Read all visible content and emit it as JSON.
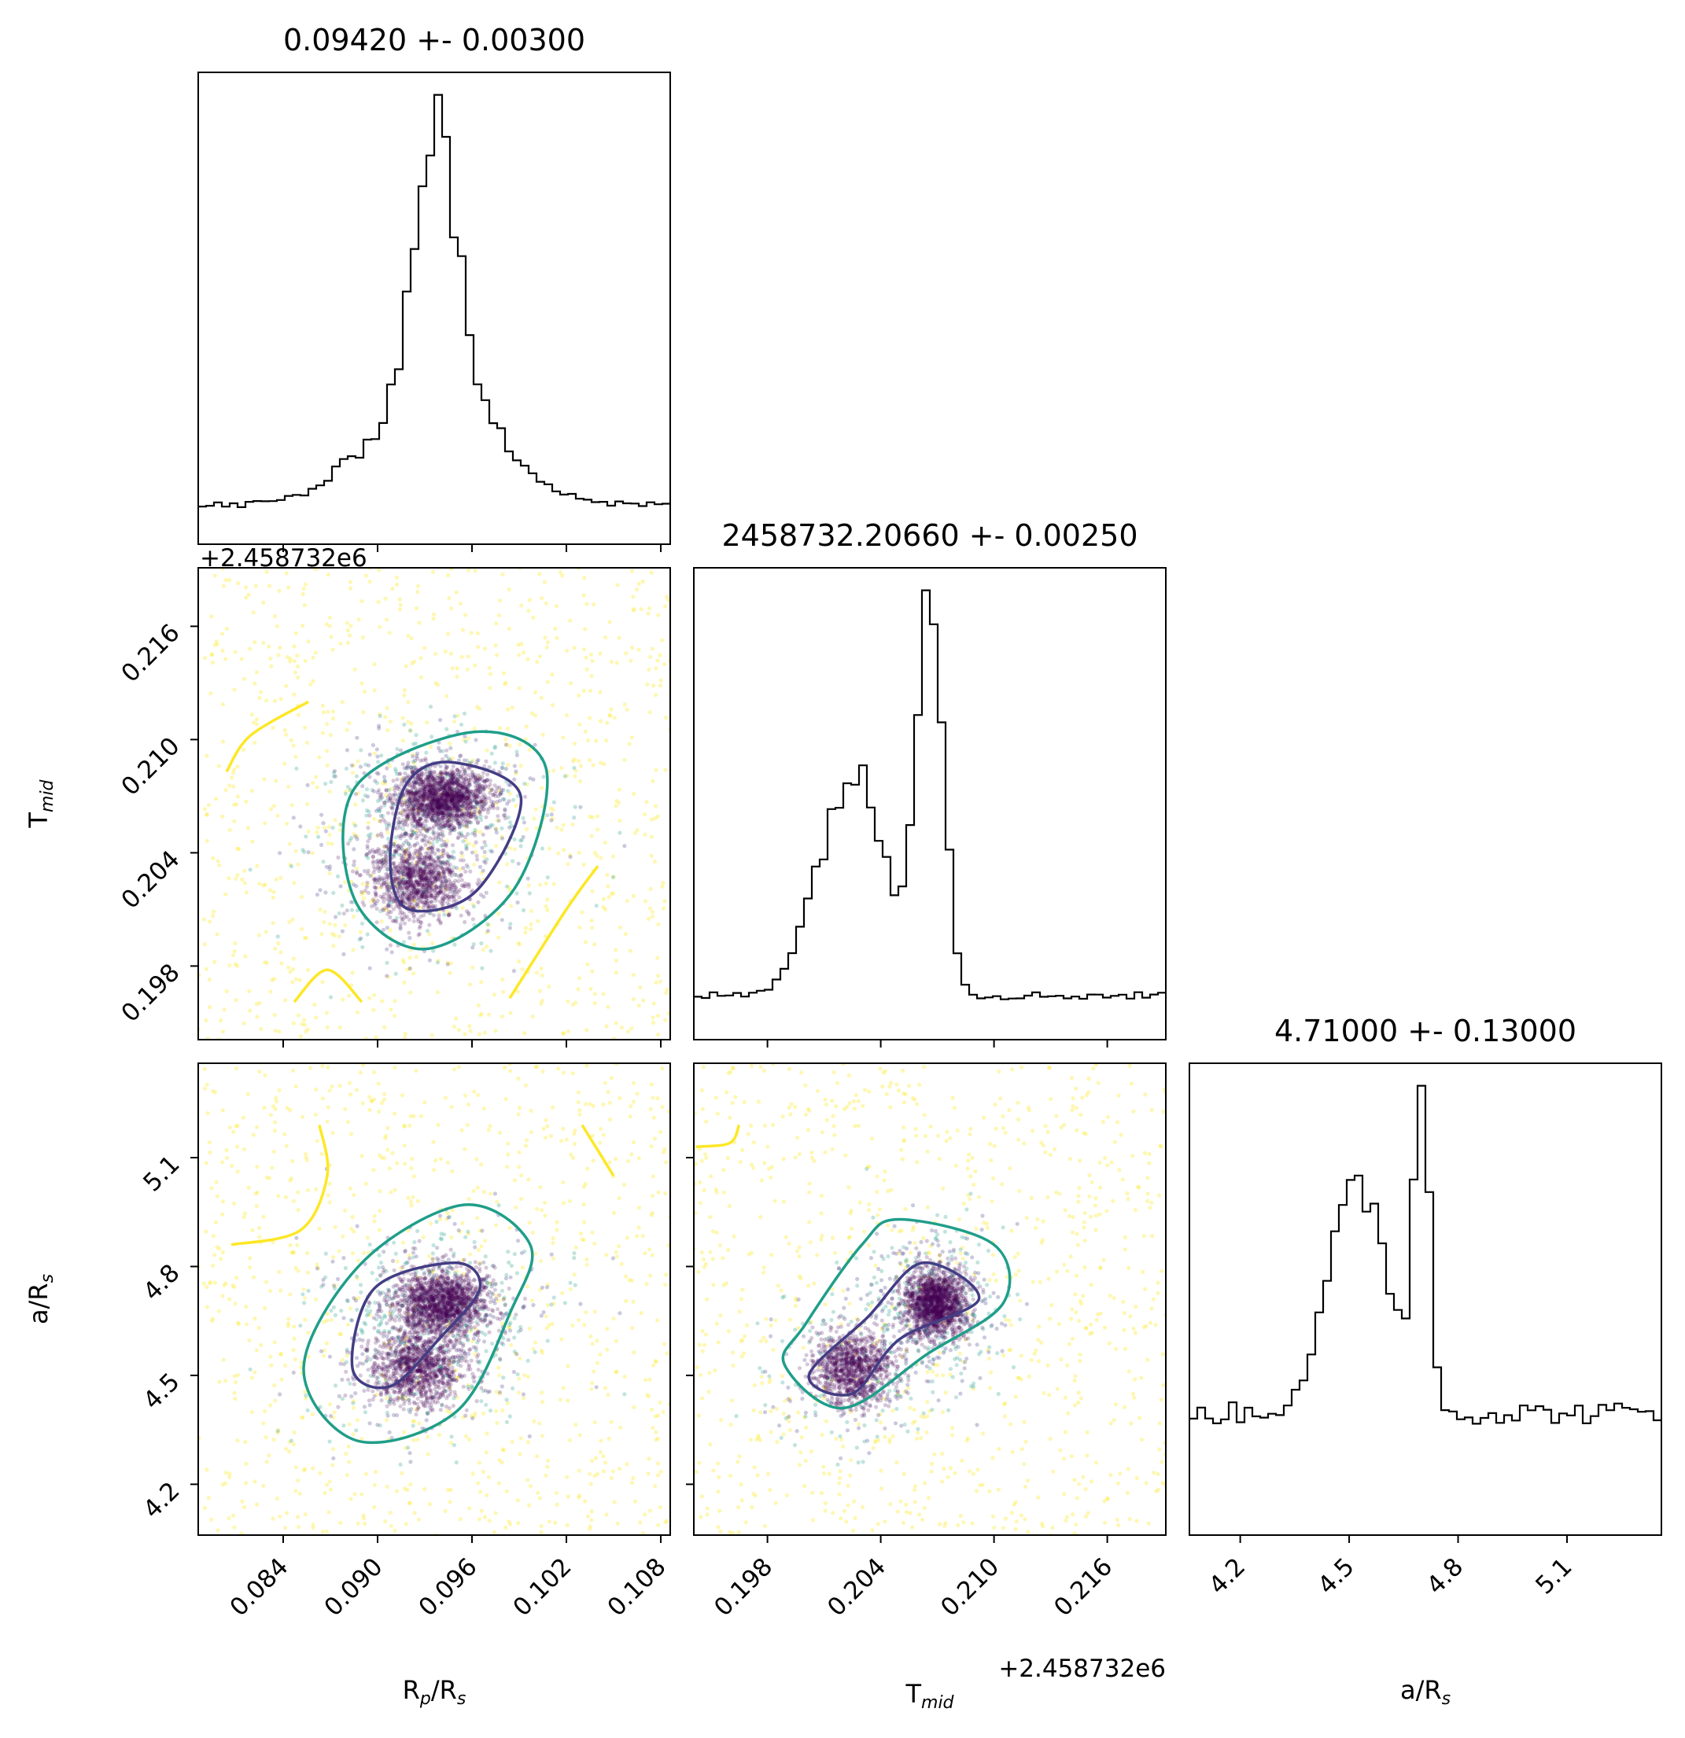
{
  "figure": {
    "colors": {
      "inner_contour": "#433d84",
      "middle_contour": "#1f9e89",
      "outer_contour": "#fde725",
      "dense_points": "#440154",
      "histogram": "#000000"
    }
  },
  "chart_data": {
    "type": "corner",
    "parameters": [
      {
        "key": "rp_rs",
        "label_main": "R",
        "label_sub1": "p",
        "label_mid": "/R",
        "label_sub2": "s",
        "title": "0.09420 +- 0.00300",
        "range": [
          0.0786,
          0.1086
        ],
        "ticks": [
          0.084,
          0.09,
          0.096,
          0.102,
          0.108
        ],
        "tick_labels": [
          "0.084",
          "0.090",
          "0.096",
          "0.102",
          "0.108"
        ]
      },
      {
        "key": "t_mid",
        "label_main": "T",
        "label_sub1": "mid",
        "label_mid": "",
        "label_sub2": "",
        "title": "2458732.20660 +- 0.00250",
        "range": [
          0.1941,
          0.2191
        ],
        "ticks": [
          0.198,
          0.204,
          0.21,
          0.216
        ],
        "tick_labels": [
          "0.198",
          "0.204",
          "0.210",
          "0.216"
        ],
        "offset_text": "+2.458732e6"
      },
      {
        "key": "a_rs",
        "label_main": "a/R",
        "label_sub1": "s",
        "label_mid": "",
        "label_sub2": "",
        "title": "4.71000 +- 0.13000",
        "range": [
          4.06,
          5.36
        ],
        "ticks": [
          4.2,
          4.5,
          4.8,
          5.1
        ],
        "tick_labels": [
          "4.2",
          "4.5",
          "4.8",
          "5.1"
        ]
      }
    ],
    "histograms": [
      {
        "param": "rp_rs",
        "bins": 60,
        "peak_components": [
          {
            "weight": 0.7,
            "mean": 0.0937,
            "sd": 0.0013
          },
          {
            "weight": 0.3,
            "mean": 0.0937,
            "sd": 0.004
          }
        ],
        "background": 0.1
      },
      {
        "param": "t_mid",
        "bins": 60,
        "peak_components": [
          {
            "weight": 0.65,
            "mean": 0.2066,
            "sd": 0.0007
          },
          {
            "weight": 0.35,
            "mean": 0.2025,
            "sd": 0.0018
          }
        ],
        "background": 0.07
      },
      {
        "param": "a_rs",
        "bins": 60,
        "peak_components": [
          {
            "weight": 0.6,
            "mean": 4.7,
            "sd": 0.02
          },
          {
            "weight": 0.4,
            "mean": 4.53,
            "sd": 0.085
          }
        ],
        "background": 0.22
      }
    ],
    "samples": {
      "clusters": [
        {
          "weight": 0.6,
          "mean": [
            0.094,
            0.2069,
            4.7
          ],
          "sd": [
            0.0015,
            0.0008,
            0.045
          ]
        },
        {
          "weight": 0.4,
          "mean": [
            0.0925,
            0.2025,
            4.52
          ],
          "sd": [
            0.0015,
            0.001,
            0.05
          ]
        }
      ],
      "dense_count": 2600,
      "spread_count": 650,
      "uniform_count": 900
    },
    "contours": {
      "panels": [
        {
          "x": "rp_rs",
          "y": "t_mid",
          "inner": [
            [
              0.0947,
              0.2088
            ],
            [
              0.0991,
              0.207
            ],
            [
              0.0963,
              0.202
            ],
            [
              0.092,
              0.201
            ],
            [
              0.0908,
              0.2035
            ],
            [
              0.0918,
              0.2076
            ]
          ],
          "middle": [
            [
              0.0961,
              0.2104
            ],
            [
              0.1007,
              0.2085
            ],
            [
              0.0987,
              0.2021
            ],
            [
              0.093,
              0.1989
            ],
            [
              0.0885,
              0.2016
            ],
            [
              0.0886,
              0.2075
            ]
          ],
          "outer": [
            [
              [
                0.0804,
                0.2083
              ],
              [
                0.0819,
                0.2102
              ],
              [
                0.0856,
                0.212
              ]
            ],
            [
              [
                0.0984,
                0.1963
              ],
              [
                0.102,
                0.201
              ],
              [
                0.104,
                0.2033
              ]
            ],
            [
              [
                0.0847,
                0.1961
              ],
              [
                0.0868,
                0.1978
              ],
              [
                0.089,
                0.1961
              ]
            ]
          ]
        },
        {
          "x": "rp_rs",
          "y": "a_rs",
          "inner": [
            [
              0.0949,
              4.81
            ],
            [
              0.0965,
              4.74
            ],
            [
              0.0939,
              4.6
            ],
            [
              0.0908,
              4.47
            ],
            [
              0.0884,
              4.52
            ],
            [
              0.0898,
              4.74
            ]
          ],
          "middle": [
            [
              0.0955,
              4.97
            ],
            [
              0.0997,
              4.86
            ],
            [
              0.0985,
              4.68
            ],
            [
              0.095,
              4.4
            ],
            [
              0.0887,
              4.32
            ],
            [
              0.0853,
              4.52
            ],
            [
              0.089,
              4.81
            ]
          ],
          "outer": [
            [
              [
                0.0863,
                5.19
              ],
              [
                0.0868,
                5.05
              ],
              [
                0.0851,
                4.9
              ],
              [
                0.0807,
                4.86
              ]
            ],
            [
              [
                0.103,
                5.19
              ],
              [
                0.105,
                5.05
              ]
            ]
          ]
        },
        {
          "x": "t_mid",
          "y": "a_rs",
          "inner": [
            [
              0.2062,
              4.81
            ],
            [
              0.2092,
              4.71
            ],
            [
              0.205,
              4.6
            ],
            [
              0.2025,
              4.45
            ],
            [
              0.2002,
              4.5
            ],
            [
              0.2033,
              4.66
            ]
          ],
          "middle": [
            [
              0.205,
              4.93
            ],
            [
              0.21,
              4.86
            ],
            [
              0.2105,
              4.7
            ],
            [
              0.2065,
              4.56
            ],
            [
              0.202,
              4.41
            ],
            [
              0.1989,
              4.53
            ],
            [
              0.2,
              4.64
            ],
            [
              0.203,
              4.86
            ]
          ],
          "outer": [
            [
              [
                0.1942,
                5.13
              ],
              [
                0.196,
                5.14
              ],
              [
                0.1965,
                5.19
              ]
            ]
          ]
        }
      ]
    }
  }
}
